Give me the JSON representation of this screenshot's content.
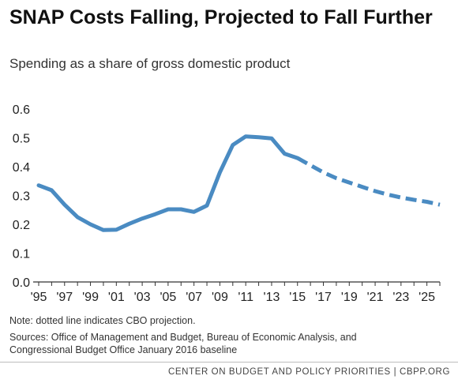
{
  "title": "SNAP Costs Falling, Projected to Fall Further",
  "subtitle": "Spending as a share of gross domestic product",
  "note": "Note:  dotted line indicates CBO projection.",
  "sources": "Sources: Office of Management and Budget, Bureau of Economic Analysis, and Congressional Budget Office January 2016 baseline",
  "footer": "CENTER ON BUDGET AND POLICY PRIORITIES | CBPP.ORG",
  "colors": {
    "line": "#4a8bc2",
    "axis": "#333333",
    "text": "#222222"
  },
  "chart_data": {
    "type": "line",
    "title": "SNAP Costs Falling, Projected to Fall Further",
    "subtitle": "Spending as a share of gross domestic product",
    "xlabel": "",
    "ylabel": "",
    "ylim": [
      0,
      0.6
    ],
    "yticks": [
      0.0,
      0.1,
      0.2,
      0.3,
      0.4,
      0.5,
      0.6
    ],
    "ytick_labels": [
      "0.0",
      "0.1",
      "0.2",
      "0.3",
      "0.4",
      "0.5",
      "0.6"
    ],
    "xlim": [
      1995,
      2026
    ],
    "xticks": [
      1995,
      1997,
      1999,
      2001,
      2003,
      2005,
      2007,
      2009,
      2011,
      2013,
      2015,
      2017,
      2019,
      2021,
      2023,
      2025
    ],
    "xtick_labels": [
      "'95",
      "'97",
      "'99",
      "'01",
      "'03",
      "'05",
      "'07",
      "'09",
      "'11",
      "'13",
      "'15",
      "'17",
      "'19",
      "'21",
      "'23",
      "'25"
    ],
    "grid": false,
    "series": [
      {
        "style": "solid",
        "x": [
          1995,
          1996,
          1997,
          1998,
          1999,
          2000,
          2001,
          2002,
          2003,
          2004,
          2005,
          2006,
          2007,
          2008,
          2009,
          2010,
          2011,
          2012,
          2013,
          2014,
          2015
        ],
        "y": [
          0.335,
          0.318,
          0.268,
          0.225,
          0.2,
          0.18,
          0.181,
          0.202,
          0.22,
          0.235,
          0.252,
          0.252,
          0.243,
          0.265,
          0.38,
          0.475,
          0.505,
          0.502,
          0.498,
          0.445,
          0.43
        ]
      },
      {
        "style": "dashed",
        "x": [
          2015,
          2016,
          2017,
          2018,
          2019,
          2020,
          2021,
          2022,
          2023,
          2024,
          2025,
          2026
        ],
        "y": [
          0.43,
          0.405,
          0.38,
          0.36,
          0.345,
          0.33,
          0.315,
          0.303,
          0.293,
          0.285,
          0.278,
          0.268
        ]
      }
    ]
  }
}
